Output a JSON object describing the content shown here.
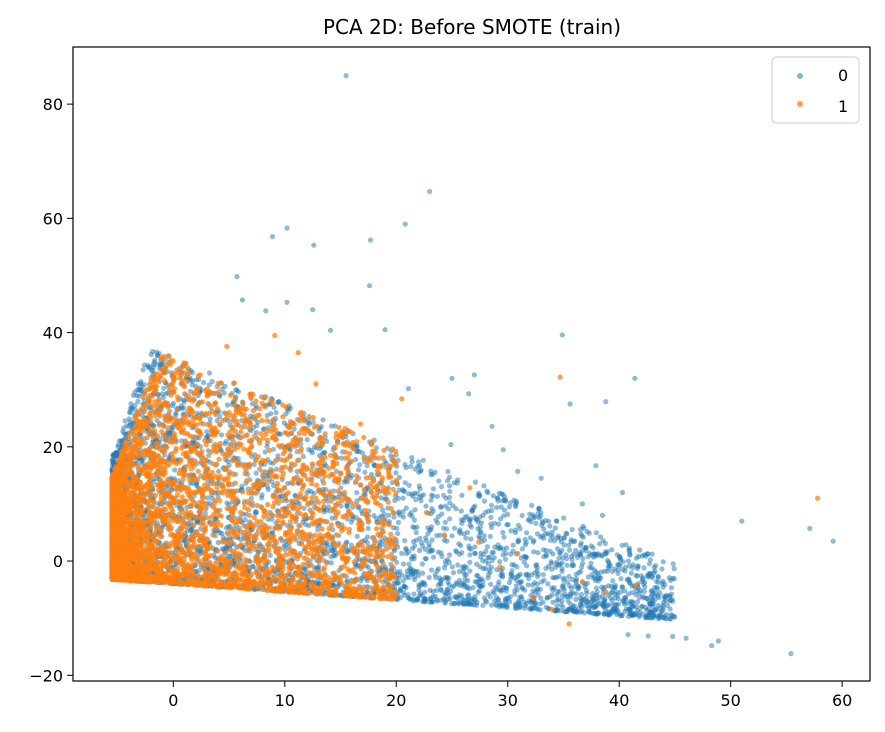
{
  "chart_data": {
    "type": "scatter",
    "title": "PCA 2D: Before SMOTE (train)",
    "xlabel": "",
    "ylabel": "",
    "xlim": [
      -9,
      62.5
    ],
    "ylim": [
      -21,
      90
    ],
    "xticks": [
      0,
      10,
      20,
      30,
      40,
      50,
      60
    ],
    "yticks": [
      -20,
      0,
      20,
      40,
      60,
      80
    ],
    "grid": false,
    "legend_position": "top-right",
    "series": [
      {
        "name": "0",
        "color": "#1f77b4",
        "outliers": [
          [
            15.5,
            85
          ],
          [
            23,
            64.7
          ],
          [
            10.2,
            58.3
          ],
          [
            20.8,
            59
          ],
          [
            8.9,
            56.8
          ],
          [
            17.7,
            56.2
          ],
          [
            12.6,
            55.3
          ],
          [
            5.7,
            49.8
          ],
          [
            6.2,
            45.7
          ],
          [
            10.2,
            45.3
          ],
          [
            12.5,
            44
          ],
          [
            8.3,
            43.8
          ],
          [
            17.6,
            48.2
          ],
          [
            34.9,
            39.6
          ],
          [
            41.4,
            32
          ],
          [
            25,
            32
          ],
          [
            27,
            32.6
          ],
          [
            35.6,
            27.5
          ],
          [
            38.8,
            27.9
          ],
          [
            26.5,
            29.3
          ],
          [
            37.9,
            16.7
          ],
          [
            40.3,
            12
          ],
          [
            51,
            7
          ],
          [
            57.1,
            5.7
          ],
          [
            59.2,
            3.5
          ],
          [
            55.4,
            -16.2
          ],
          [
            48.9,
            -14
          ],
          [
            48.3,
            -14.8
          ],
          [
            46,
            -13.5
          ],
          [
            44.8,
            -13.2
          ],
          [
            42.6,
            -13.1
          ],
          [
            40.8,
            -12.9
          ],
          [
            19,
            40.5
          ],
          [
            14.1,
            40.4
          ],
          [
            21.1,
            30.2
          ],
          [
            29.6,
            19.5
          ],
          [
            33,
            14.5
          ],
          [
            36.7,
            10
          ],
          [
            38.5,
            8
          ],
          [
            30.9,
            15.7
          ],
          [
            28.6,
            23.6
          ],
          [
            24.9,
            20.4
          ]
        ],
        "cluster": {
          "count": 4200,
          "x_range": [
            -5.5,
            45
          ],
          "y_base": [
            -3.2,
            -0.14
          ],
          "upper_slope": 10.5,
          "upper_intercept": 18
        }
      },
      {
        "name": "1",
        "color": "#ff7f0e",
        "outliers": [
          [
            57.8,
            11
          ],
          [
            34.7,
            32.2
          ],
          [
            20.5,
            28.4
          ],
          [
            26.6,
            12.8
          ],
          [
            41.5,
            -4.3
          ],
          [
            38.8,
            -5.4
          ],
          [
            32.3,
            -6.5
          ],
          [
            35.5,
            -11
          ],
          [
            30.9,
            1.3
          ],
          [
            27.4,
            3.3
          ],
          [
            22.7,
            8.5
          ],
          [
            24.3,
            4.6
          ],
          [
            16.8,
            24
          ],
          [
            11.2,
            36.5
          ],
          [
            9.1,
            39.5
          ],
          [
            4.8,
            37.6
          ],
          [
            12.8,
            31
          ],
          [
            15.4,
            23.2
          ],
          [
            18.4,
            16.5
          ],
          [
            20,
            14.1
          ],
          [
            36.7,
            -3.6
          ],
          [
            29.3,
            -1
          ],
          [
            34,
            -8.5
          ]
        ],
        "cluster": {
          "count": 3400,
          "x_range": [
            -5.5,
            20
          ],
          "y_base": [
            -3.2,
            -0.14
          ],
          "upper_slope": 9.0,
          "upper_intercept": 15
        }
      }
    ]
  }
}
